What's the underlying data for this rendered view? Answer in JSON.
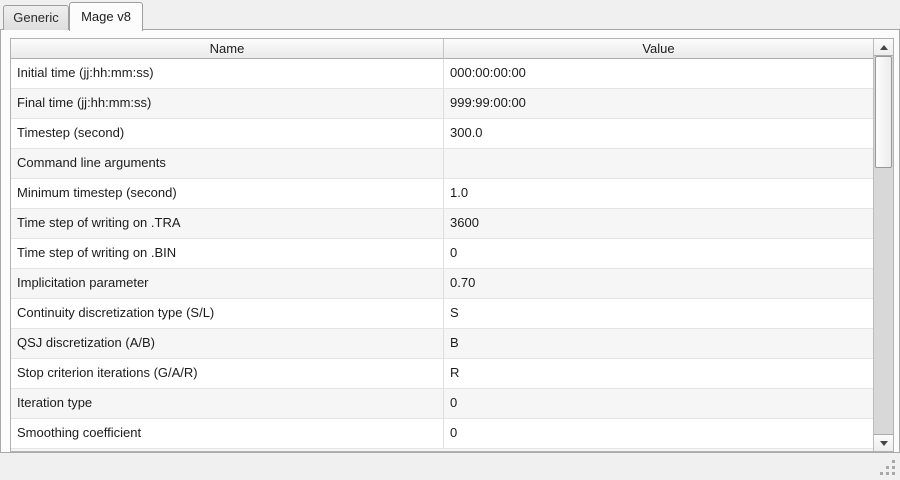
{
  "tabs": [
    {
      "label": "Generic",
      "active": false
    },
    {
      "label": "Mage v8",
      "active": true
    }
  ],
  "table": {
    "columns": [
      {
        "label": "Name"
      },
      {
        "label": "Value"
      }
    ],
    "rows": [
      {
        "name": "Initial time (jj:hh:mm:ss)",
        "value": "000:00:00:00"
      },
      {
        "name": "Final time (jj:hh:mm:ss)",
        "value": "999:99:00:00"
      },
      {
        "name": "Timestep (second)",
        "value": "300.0"
      },
      {
        "name": "Command line arguments",
        "value": ""
      },
      {
        "name": "Minimum timestep (second)",
        "value": "1.0"
      },
      {
        "name": "Time step of writing on .TRA",
        "value": "3600"
      },
      {
        "name": "Time step of writing on .BIN",
        "value": "0"
      },
      {
        "name": "Implicitation parameter",
        "value": "0.70"
      },
      {
        "name": "Continuity discretization type (S/L)",
        "value": "S"
      },
      {
        "name": "QSJ discretization (A/B)",
        "value": "B"
      },
      {
        "name": "Stop criterion iterations (G/A/R)",
        "value": "R"
      },
      {
        "name": "Iteration type",
        "value": "0"
      },
      {
        "name": "Smoothing coefficient",
        "value": "0"
      }
    ]
  },
  "scrollbar": {
    "up_icon": "triangle-up",
    "down_icon": "triangle-down"
  },
  "icons": {
    "resize_grip": "dot-triangle"
  },
  "colors": {
    "window_background": "#f0f0f0",
    "page_background": "#fcfcfc",
    "frame_border": "#b2b2b2",
    "row_alternate": "#f6f6f6",
    "scroll_trough": "#d8d8d8"
  }
}
